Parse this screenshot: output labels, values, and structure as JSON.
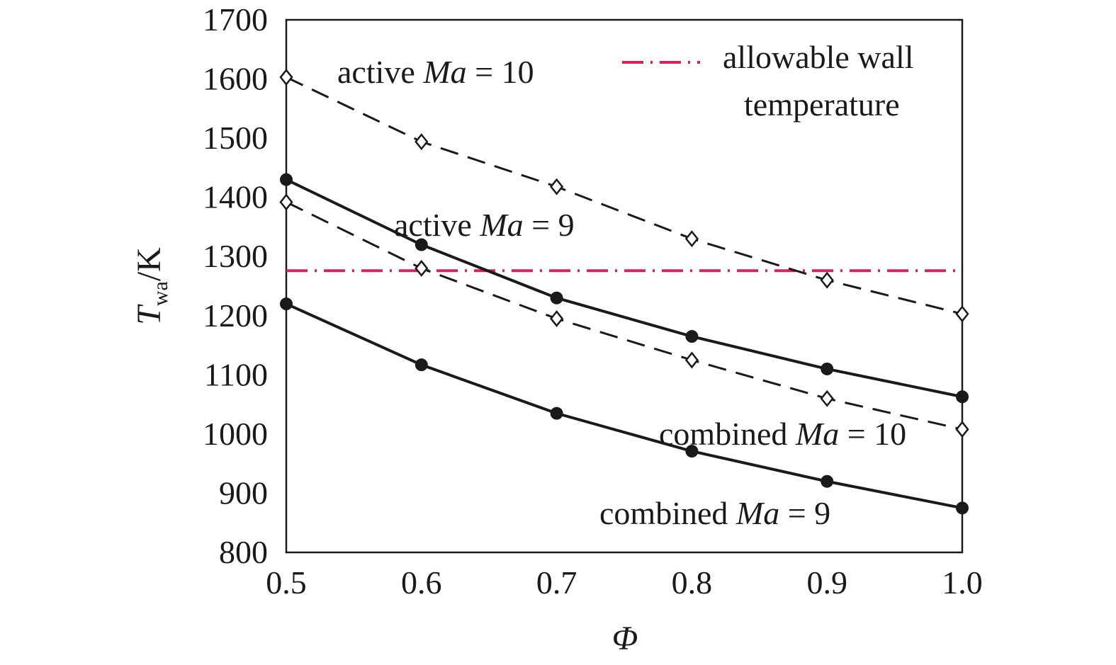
{
  "chart_data": {
    "type": "line",
    "xlabel": "Φ",
    "ylabel": {
      "main": "T",
      "subscript": "wa",
      "unit": "/K"
    },
    "xlim": [
      0.5,
      1.0
    ],
    "ylim": [
      800,
      1700
    ],
    "xticks": [
      "0.5",
      "0.6",
      "0.7",
      "0.8",
      "0.9",
      "1.0"
    ],
    "yticks": [
      "800",
      "900",
      "1000",
      "1100",
      "1200",
      "1300",
      "1400",
      "1500",
      "1600",
      "1700"
    ],
    "x": [
      0.5,
      0.6,
      0.7,
      0.8,
      0.9,
      1.0
    ],
    "series": [
      {
        "name": "active Ma = 10",
        "values": [
          1603,
          1494,
          1418,
          1330,
          1260,
          1203
        ],
        "style": "dashed",
        "marker": "open-diamond",
        "color": "#1a1a1a"
      },
      {
        "name": "active Ma = 9",
        "values": [
          1392,
          1280,
          1195,
          1125,
          1060,
          1008
        ],
        "style": "dashed",
        "marker": "open-diamond",
        "color": "#1a1a1a"
      },
      {
        "name": "combined Ma = 10",
        "values": [
          1430,
          1320,
          1230,
          1165,
          1110,
          1063
        ],
        "style": "solid",
        "marker": "filled-circle",
        "color": "#1a1a1a"
      },
      {
        "name": "combined Ma = 9",
        "values": [
          1220,
          1117,
          1035,
          971,
          920,
          875
        ],
        "style": "solid",
        "marker": "filled-circle",
        "color": "#1a1a1a"
      }
    ],
    "reference_line": {
      "name": "allowable wall temperature",
      "value": 1276,
      "style": "dash-dot",
      "color": "#d6245a"
    },
    "annotations": [
      {
        "series": 0,
        "prefix": "active ",
        "ital": "Ma",
        "suffix": " = 10"
      },
      {
        "series": 1,
        "prefix": "active ",
        "ital": "Ma",
        "suffix": " = 9"
      },
      {
        "series": 2,
        "prefix": "combined ",
        "ital": "Ma",
        "suffix": " = 10"
      },
      {
        "series": 3,
        "prefix": "combined ",
        "ital": "Ma",
        "suffix": " = 9"
      }
    ],
    "legend": {
      "position": "top-right",
      "lines": [
        "allowable wall",
        "temperature"
      ]
    },
    "grid": false
  }
}
